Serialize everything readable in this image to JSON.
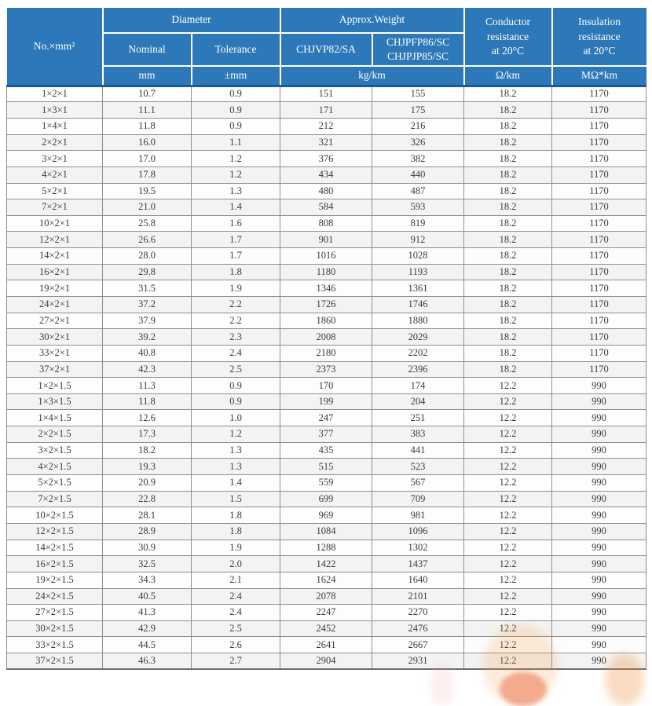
{
  "table": {
    "colors": {
      "header_bg": "#2d78b8",
      "header_text": "#ffffff",
      "header_bottom_line": "#1a5a98",
      "row_bg": "#fdfdfd",
      "row_alt_bg": "#f3f3f3",
      "grid_border": "#8f8f8f",
      "body_text": "#3c3c3c",
      "watermark_orange": "#e55223"
    },
    "header": {
      "no_mm": "No.×mm²",
      "diameter": "Diameter",
      "approx_weight": "Approx.Weight",
      "conductor": "Conductor\nresistance\nat 20°C",
      "insulation": "Insulation\nresistance\nat 20°C",
      "nominal": "Nominal",
      "tolerance": "Tolerance",
      "weight_type_a": "CHJVP82/SA",
      "weight_type_b": "CHJPFP86/SC\nCHJPJP85/SC"
    },
    "units": {
      "nominal": "mm",
      "tolerance": "±mm",
      "weight": "kg/km",
      "conductor": "Ω/km",
      "insulation": "MΩ*km"
    },
    "rows": [
      [
        "1×2×1",
        "10.7",
        "0.9",
        "151",
        "155",
        "18.2",
        "1170"
      ],
      [
        "1×3×1",
        "11.1",
        "0.9",
        "171",
        "175",
        "18.2",
        "1170"
      ],
      [
        "1×4×1",
        "11.8",
        "0.9",
        "212",
        "216",
        "18.2",
        "1170"
      ],
      [
        "2×2×1",
        "16.0",
        "1.1",
        "321",
        "326",
        "18.2",
        "1170"
      ],
      [
        "3×2×1",
        "17.0",
        "1.2",
        "376",
        "382",
        "18.2",
        "1170"
      ],
      [
        "4×2×1",
        "17.8",
        "1.2",
        "434",
        "440",
        "18.2",
        "1170"
      ],
      [
        "5×2×1",
        "19.5",
        "1.3",
        "480",
        "487",
        "18.2",
        "1170"
      ],
      [
        "7×2×1",
        "21.0",
        "1.4",
        "584",
        "593",
        "18.2",
        "1170"
      ],
      [
        "10×2×1",
        "25.8",
        "1.6",
        "808",
        "819",
        "18.2",
        "1170"
      ],
      [
        "12×2×1",
        "26.6",
        "1.7",
        "901",
        "912",
        "18.2",
        "1170"
      ],
      [
        "14×2×1",
        "28.0",
        "1.7",
        "1016",
        "1028",
        "18.2",
        "1170"
      ],
      [
        "16×2×1",
        "29.8",
        "1.8",
        "1180",
        "1193",
        "18.2",
        "1170"
      ],
      [
        "19×2×1",
        "31.5",
        "1.9",
        "1346",
        "1361",
        "18.2",
        "1170"
      ],
      [
        "24×2×1",
        "37.2",
        "2.2",
        "1726",
        "1746",
        "18.2",
        "1170"
      ],
      [
        "27×2×1",
        "37.9",
        "2.2",
        "1860",
        "1880",
        "18.2",
        "1170"
      ],
      [
        "30×2×1",
        "39.2",
        "2.3",
        "2008",
        "2029",
        "18.2",
        "1170"
      ],
      [
        "33×2×1",
        "40.8",
        "2.4",
        "2180",
        "2202",
        "18.2",
        "1170"
      ],
      [
        "37×2×1",
        "42.3",
        "2.5",
        "2373",
        "2396",
        "18.2",
        "1170"
      ],
      [
        "1×2×1.5",
        "11.3",
        "0.9",
        "170",
        "174",
        "12.2",
        "990"
      ],
      [
        "1×3×1.5",
        "11.8",
        "0.9",
        "199",
        "204",
        "12.2",
        "990"
      ],
      [
        "1×4×1.5",
        "12.6",
        "1.0",
        "247",
        "251",
        "12.2",
        "990"
      ],
      [
        "2×2×1.5",
        "17.3",
        "1.2",
        "377",
        "383",
        "12.2",
        "990"
      ],
      [
        "3×2×1.5",
        "18.2",
        "1.3",
        "435",
        "441",
        "12.2",
        "990"
      ],
      [
        "4×2×1.5",
        "19.3",
        "1.3",
        "515",
        "523",
        "12.2",
        "990"
      ],
      [
        "5×2×1.5",
        "20.9",
        "1.4",
        "559",
        "567",
        "12.2",
        "990"
      ],
      [
        "7×2×1.5",
        "22.8",
        "1.5",
        "699",
        "709",
        "12.2",
        "990"
      ],
      [
        "10×2×1.5",
        "28.1",
        "1.8",
        "969",
        "981",
        "12.2",
        "990"
      ],
      [
        "12×2×1.5",
        "28.9",
        "1.8",
        "1084",
        "1096",
        "12.2",
        "990"
      ],
      [
        "14×2×1.5",
        "30.9",
        "1.9",
        "1288",
        "1302",
        "12.2",
        "990"
      ],
      [
        "16×2×1.5",
        "32.5",
        "2.0",
        "1422",
        "1437",
        "12.2",
        "990"
      ],
      [
        "19×2×1.5",
        "34.3",
        "2.1",
        "1624",
        "1640",
        "12.2",
        "990"
      ],
      [
        "24×2×1.5",
        "40.5",
        "2.4",
        "2078",
        "2101",
        "12.2",
        "990"
      ],
      [
        "27×2×1.5",
        "41.3",
        "2.4",
        "2247",
        "2270",
        "12.2",
        "990"
      ],
      [
        "30×2×1.5",
        "42.9",
        "2.5",
        "2452",
        "2476",
        "12.2",
        "990"
      ],
      [
        "33×2×1.5",
        "44.5",
        "2.6",
        "2641",
        "2667",
        "12.2",
        "990"
      ],
      [
        "37×2×1.5",
        "46.3",
        "2.7",
        "2904",
        "2931",
        "12.2",
        "990"
      ]
    ]
  }
}
